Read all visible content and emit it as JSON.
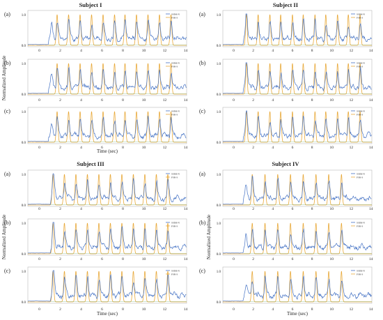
{
  "figure": {
    "ylabel": "Normalized Amplitude",
    "xlabel": "Time (sec)"
  },
  "chart_data": [
    {
      "type": "line",
      "title": "Subject I",
      "xticks": [
        0,
        2,
        4,
        6,
        8,
        10,
        12,
        14
      ],
      "yticks": [
        "0.0",
        "1.0"
      ],
      "xlim": [
        -1.1,
        14.1
      ],
      "ylim": [
        0,
        1
      ],
      "panels": [
        {
          "label": "(a)",
          "onset": 0.9,
          "peaks": [
            1.7,
            2.8,
            3.9,
            5.0,
            6.1,
            7.2,
            8.2,
            9.3,
            10.4,
            11.5,
            12.6
          ],
          "legend": [
            "SSIM-N",
            "FSR-S"
          ]
        },
        {
          "label": "(b)",
          "onset": 0.9,
          "peaks": [
            1.7,
            2.8,
            3.9,
            5.0,
            6.1,
            7.2,
            8.2,
            9.3,
            10.4,
            11.5,
            12.6
          ],
          "legend": [
            "SSIM-N",
            "FSR-S"
          ]
        },
        {
          "label": "(c)",
          "onset": 0.9,
          "peaks": [
            1.7,
            2.8,
            3.9,
            5.0,
            6.1,
            7.2,
            8.2,
            9.3,
            10.4,
            11.5,
            12.6
          ],
          "legend": [
            "SSIM-N",
            "FSR-S"
          ]
        }
      ]
    },
    {
      "type": "line",
      "title": "Subject II",
      "xticks": [
        0,
        2,
        4,
        6,
        8,
        10,
        12,
        14
      ],
      "yticks": [
        "0.0",
        "1.0"
      ],
      "xlim": [
        -1.1,
        14.1
      ],
      "ylim": [
        0,
        1
      ],
      "panels": [
        {
          "label": "(a)",
          "onset": 1.0,
          "peaks": [
            1.3,
            2.5,
            3.7,
            4.8,
            6.0,
            7.1,
            8.3,
            9.4,
            10.6,
            11.7,
            12.9
          ],
          "legend": [
            "SSIM-N",
            "FSR-S"
          ]
        },
        {
          "label": "(b)",
          "onset": 1.0,
          "peaks": [
            1.3,
            2.5,
            3.7,
            4.8,
            6.0,
            7.1,
            8.3,
            9.4,
            10.6,
            11.7,
            12.9
          ],
          "legend": [
            "SSIM-N",
            "FSR-S"
          ]
        },
        {
          "label": "(c)",
          "onset": 1.0,
          "peaks": [
            1.3,
            2.5,
            3.7,
            4.8,
            6.0,
            7.1,
            8.3,
            9.4,
            10.6,
            11.7,
            12.9
          ],
          "legend": [
            "SSIM-N",
            "FSR-S"
          ]
        }
      ]
    },
    {
      "type": "line",
      "title": "Subject III",
      "xticks": [
        0,
        2,
        4,
        6,
        8,
        10,
        12,
        14
      ],
      "yticks": [
        "0.0",
        "1.0"
      ],
      "xlim": [
        -1.1,
        14.1
      ],
      "ylim": [
        0,
        1
      ],
      "panels": [
        {
          "label": "(a)",
          "onset": 1.1,
          "peaks": [
            1.3,
            2.4,
            3.5,
            4.6,
            5.7,
            6.8,
            7.9,
            9.0,
            10.1,
            11.2,
            12.3
          ],
          "legend": [
            "SSIM-N",
            "FSR-S"
          ]
        },
        {
          "label": "(b)",
          "onset": 1.1,
          "peaks": [
            1.3,
            2.4,
            3.5,
            4.6,
            5.7,
            6.8,
            7.9,
            9.0,
            10.1,
            11.2,
            12.3
          ],
          "legend": [
            "SSIM-N",
            "FSR-S"
          ]
        },
        {
          "label": "(c)",
          "onset": 1.1,
          "peaks": [
            1.3,
            2.4,
            3.5,
            4.6,
            5.7,
            6.8,
            7.9,
            9.0,
            10.1,
            11.2,
            12.3
          ],
          "legend": [
            "SSIM-N",
            "FSR-S"
          ]
        }
      ]
    },
    {
      "type": "line",
      "title": "Subject IV",
      "xticks": [
        0,
        2,
        4,
        6,
        8,
        10,
        12,
        14
      ],
      "yticks": [
        "0.0",
        "1.0"
      ],
      "xlim": [
        -1.1,
        14.1
      ],
      "ylim": [
        0,
        1
      ],
      "panels": [
        {
          "label": "(a)",
          "onset": 1.0,
          "peaks": [
            1.9,
            3.2,
            4.5,
            5.8,
            7.1,
            8.4,
            9.7,
            11.0
          ],
          "legend": [
            "SSIM-N",
            "FSR-S"
          ]
        },
        {
          "label": "(b)",
          "onset": 1.0,
          "peaks": [
            1.9,
            3.2,
            4.5,
            5.8,
            7.1,
            8.4,
            9.7,
            11.0
          ],
          "legend": [
            "SSIM-N",
            "FSR-S"
          ]
        },
        {
          "label": "(c)",
          "onset": 1.0,
          "peaks": [
            1.9,
            3.2,
            4.5,
            5.8,
            7.1,
            8.4,
            9.7,
            11.0
          ],
          "legend": [
            "SSIM-N",
            "FSR-S"
          ]
        }
      ]
    }
  ],
  "colors": {
    "measured": "#4472c4",
    "reference": "#e8a93a",
    "alt": "#5aa05a",
    "axis": "#333333",
    "frame": "#b8b8b8"
  }
}
